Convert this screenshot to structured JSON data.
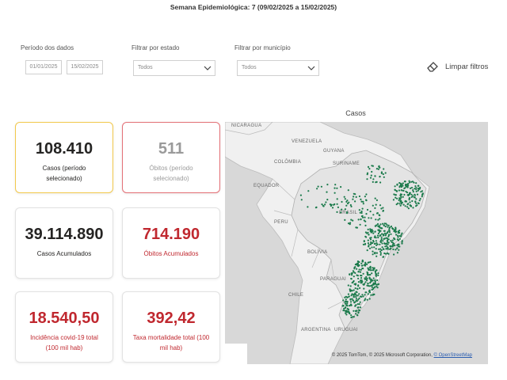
{
  "header": {
    "week": "Semana Epidemiológica: 7 (09/02/2025 a 15/02/2025)"
  },
  "filters": {
    "period_label": "Período dos dados",
    "date_start": "01/01/2025",
    "date_end": "15/02/2025",
    "state_label": "Filtrar por estado",
    "state_value": "Todos",
    "municipality_label": "Filtrar por município",
    "municipality_value": "Todos",
    "clear_label": "Limpar filtros"
  },
  "cards": {
    "cases_period": {
      "value": "108.410",
      "label": "Casos (período selecionado)"
    },
    "deaths_period": {
      "value": "511",
      "label": "Óbitos (período selecionado)"
    },
    "cases_total": {
      "value": "39.114.890",
      "label": "Casos Acumulados"
    },
    "deaths_total": {
      "value": "714.190",
      "label": "Óbitos Acumulados"
    },
    "incidence": {
      "value": "18.540,50",
      "label": "Incidência covid-19 total (100 mil hab)"
    },
    "mortality": {
      "value": "392,42",
      "label": "Taxa mortalidade total (100 mil hab)"
    }
  },
  "map": {
    "title": "Casos",
    "country_labels": {
      "nicaragua": "NICARAGUA",
      "venezuela": "VENEZUELA",
      "colombia": "COLÔMBIA",
      "guyana": "GUYANA",
      "suriname": "SURINAME",
      "equador": "EQUADOR",
      "brasil": "BRASIL",
      "peru": "PERU",
      "bolivia": "BOLÍVIA",
      "paraguai": "PARAGUAI",
      "chile": "CHILE",
      "argentina": "ARGENTINA",
      "uruguai": "URUGUAI"
    },
    "attribution": "© 2025 TomTom, © 2025 Microsoft Corporation,",
    "attribution_link": "© OpenStreetMap",
    "colors": {
      "ocean": "#d8d8d8",
      "land": "#f0f0f0",
      "brazil": "#e4e4e4",
      "dots": "#1b7a4b"
    }
  }
}
